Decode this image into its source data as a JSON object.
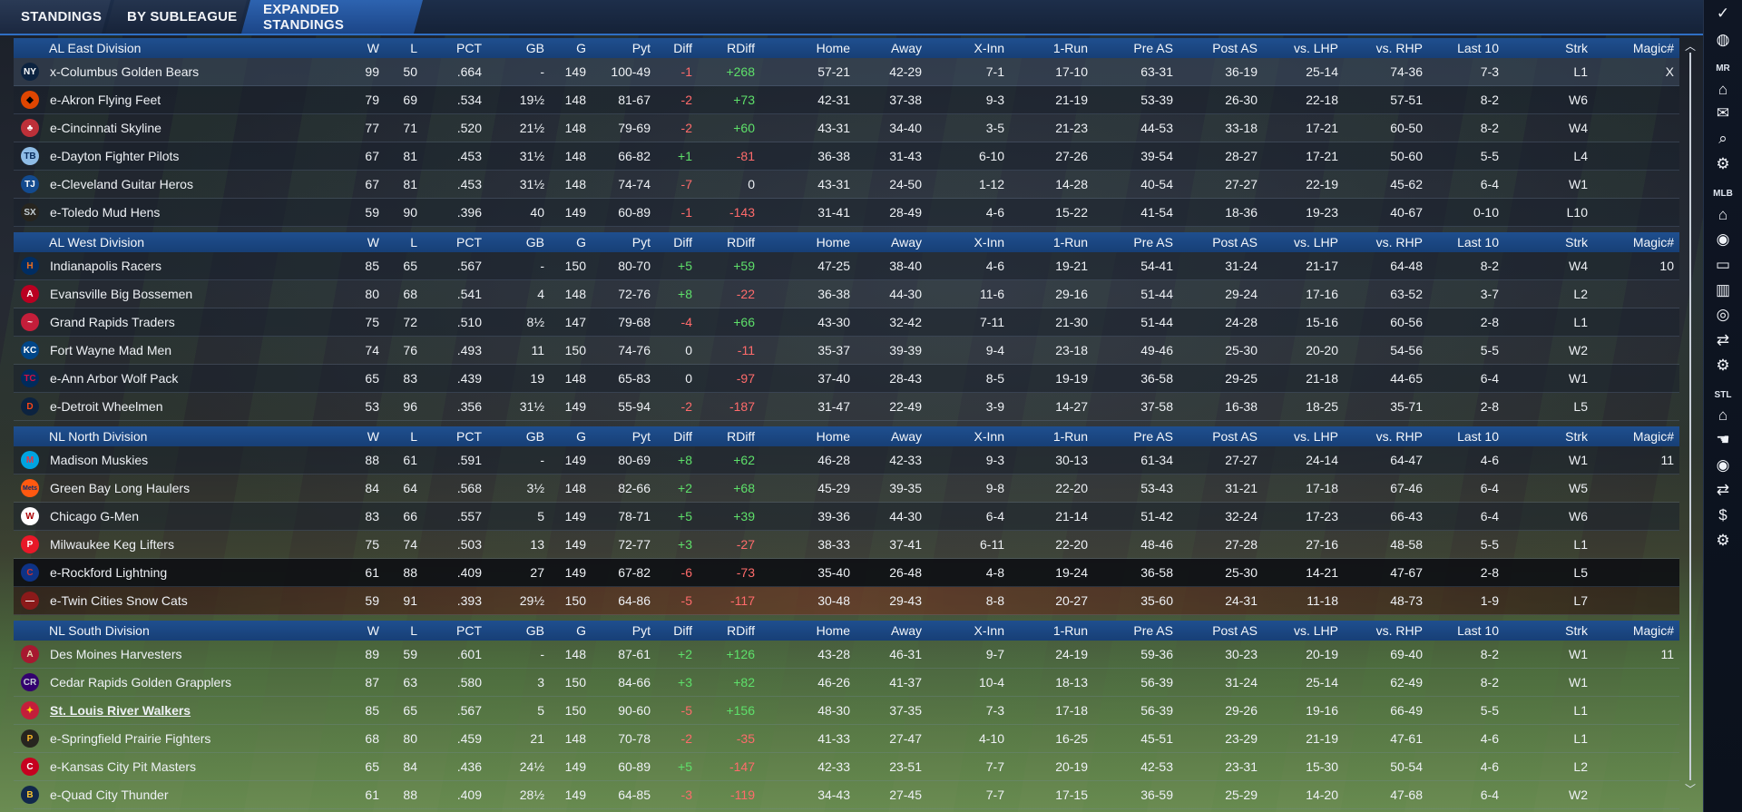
{
  "tabs": [
    {
      "label": "STANDINGS"
    },
    {
      "label": "BY SUBLEAGUE"
    },
    {
      "label": "EXPANDED STANDINGS"
    }
  ],
  "sidebar": {
    "groups": [
      {
        "label": "MR"
      },
      {
        "label": "MLB"
      },
      {
        "label": "STL"
      }
    ],
    "icons": [
      "check-icon",
      "globe-icon",
      "home-icon",
      "mail-icon",
      "search-icon",
      "gear-icon",
      "home-icon",
      "target-icon",
      "card-icon",
      "bar-chart-icon",
      "baseball-icon",
      "transfer-icon",
      "gear-icon",
      "home-icon",
      "hand-icon",
      "target-icon",
      "transfer-icon",
      "dollar-icon",
      "gear-icon"
    ]
  },
  "columns": [
    "W",
    "L",
    "PCT",
    "GB",
    "G",
    "Pyt",
    "Diff",
    "RDiff",
    "Home",
    "Away",
    "X-Inn",
    "1-Run",
    "Pre AS",
    "Post AS",
    "vs. LHP",
    "vs. RHP",
    "Last 10",
    "Strk",
    "Magic#"
  ],
  "divisions": [
    {
      "name": "AL East Division",
      "teams": [
        {
          "logo": "NY",
          "logo_color": "#0c2340",
          "logo_fg": "#ffffff",
          "name": "x-Columbus Golden Bears",
          "w": "99",
          "l": "50",
          "pct": ".664",
          "gb": "-",
          "g": "149",
          "pyt": "100-49",
          "diff": "-1",
          "rdiff": "+268",
          "home": "57-21",
          "away": "42-29",
          "xinn": "7-1",
          "onerun": "17-10",
          "preas": "63-31",
          "postas": "36-19",
          "lhp": "25-14",
          "rhp": "74-36",
          "last10": "7-3",
          "strk": "L1",
          "magic": "X"
        },
        {
          "logo": "◆",
          "logo_color": "#df4601",
          "logo_fg": "#000000",
          "name": "e-Akron  Flying Feet",
          "w": "79",
          "l": "69",
          "pct": ".534",
          "gb": "19½",
          "g": "148",
          "pyt": "81-67",
          "diff": "-2",
          "rdiff": "+73",
          "home": "42-31",
          "away": "37-38",
          "xinn": "9-3",
          "onerun": "21-19",
          "preas": "53-39",
          "postas": "26-30",
          "lhp": "22-18",
          "rhp": "57-51",
          "last10": "8-2",
          "strk": "W6",
          "magic": ""
        },
        {
          "logo": "♣",
          "logo_color": "#bd3039",
          "logo_fg": "#ffffff",
          "name": "e-Cincinnati Skyline",
          "w": "77",
          "l": "71",
          "pct": ".520",
          "gb": "21½",
          "g": "148",
          "pyt": "79-69",
          "diff": "-2",
          "rdiff": "+60",
          "home": "43-31",
          "away": "34-40",
          "xinn": "3-5",
          "onerun": "21-23",
          "preas": "44-53",
          "postas": "33-18",
          "lhp": "17-21",
          "rhp": "60-50",
          "last10": "8-2",
          "strk": "W4",
          "magic": ""
        },
        {
          "logo": "TB",
          "logo_color": "#8fbce6",
          "logo_fg": "#092c5c",
          "name": "e-Dayton Fighter Pilots",
          "w": "67",
          "l": "81",
          "pct": ".453",
          "gb": "31½",
          "g": "148",
          "pyt": "66-82",
          "diff": "+1",
          "rdiff": "-81",
          "home": "36-38",
          "away": "31-43",
          "xinn": "6-10",
          "onerun": "27-26",
          "preas": "39-54",
          "postas": "28-27",
          "lhp": "17-21",
          "rhp": "50-60",
          "last10": "5-5",
          "strk": "L4",
          "magic": ""
        },
        {
          "logo": "TJ",
          "logo_color": "#134a8e",
          "logo_fg": "#ffffff",
          "name": "e-Cleveland Guitar Heros",
          "w": "67",
          "l": "81",
          "pct": ".453",
          "gb": "31½",
          "g": "148",
          "pyt": "74-74",
          "diff": "-7",
          "rdiff": "0",
          "home": "43-31",
          "away": "24-50",
          "xinn": "1-12",
          "onerun": "14-28",
          "preas": "40-54",
          "postas": "27-27",
          "lhp": "22-19",
          "rhp": "45-62",
          "last10": "6-4",
          "strk": "W1",
          "magic": ""
        },
        {
          "logo": "SX",
          "logo_color": "#27251f",
          "logo_fg": "#c4ced4",
          "name": "e-Toledo  Mud Hens",
          "w": "59",
          "l": "90",
          "pct": ".396",
          "gb": "40",
          "g": "149",
          "pyt": "60-89",
          "diff": "-1",
          "rdiff": "-143",
          "home": "31-41",
          "away": "28-49",
          "xinn": "4-6",
          "onerun": "15-22",
          "preas": "41-54",
          "postas": "18-36",
          "lhp": "19-23",
          "rhp": "40-67",
          "last10": "0-10",
          "strk": "L10",
          "magic": ""
        }
      ]
    },
    {
      "name": "AL West Division",
      "teams": [
        {
          "logo": "H",
          "logo_color": "#002d62",
          "logo_fg": "#eb6e1f",
          "name": "Indianapolis Racers",
          "w": "85",
          "l": "65",
          "pct": ".567",
          "gb": "-",
          "g": "150",
          "pyt": "80-70",
          "diff": "+5",
          "rdiff": "+59",
          "home": "47-25",
          "away": "38-40",
          "xinn": "4-6",
          "onerun": "19-21",
          "preas": "54-41",
          "postas": "31-24",
          "lhp": "21-17",
          "rhp": "64-48",
          "last10": "8-2",
          "strk": "W4",
          "magic": "10"
        },
        {
          "logo": "A",
          "logo_color": "#ba0021",
          "logo_fg": "#ffffff",
          "name": "Evansville Big Bossemen",
          "w": "80",
          "l": "68",
          "pct": ".541",
          "gb": "4",
          "g": "148",
          "pyt": "72-76",
          "diff": "+8",
          "rdiff": "-22",
          "home": "36-38",
          "away": "44-30",
          "xinn": "11-6",
          "onerun": "29-16",
          "preas": "51-44",
          "postas": "29-24",
          "lhp": "17-16",
          "rhp": "63-52",
          "last10": "3-7",
          "strk": "L2",
          "magic": ""
        },
        {
          "logo": "~",
          "logo_color": "#c41e3a",
          "logo_fg": "#ffffff",
          "name": "Grand Rapids Traders",
          "w": "75",
          "l": "72",
          "pct": ".510",
          "gb": "8½",
          "g": "147",
          "pyt": "79-68",
          "diff": "-4",
          "rdiff": "+66",
          "home": "43-30",
          "away": "32-42",
          "xinn": "7-11",
          "onerun": "21-30",
          "preas": "51-44",
          "postas": "24-28",
          "lhp": "15-16",
          "rhp": "60-56",
          "last10": "2-8",
          "strk": "L1",
          "magic": ""
        },
        {
          "logo": "KC",
          "logo_color": "#004687",
          "logo_fg": "#ffffff",
          "name": "Fort Wayne Mad Men",
          "w": "74",
          "l": "76",
          "pct": ".493",
          "gb": "11",
          "g": "150",
          "pyt": "74-76",
          "diff": "0",
          "rdiff": "-11",
          "home": "35-37",
          "away": "39-39",
          "xinn": "9-4",
          "onerun": "23-18",
          "preas": "49-46",
          "postas": "25-30",
          "lhp": "20-20",
          "rhp": "54-56",
          "last10": "5-5",
          "strk": "W2",
          "magic": ""
        },
        {
          "logo": "TC",
          "logo_color": "#002b5c",
          "logo_fg": "#d31145",
          "name": "e-Ann Arbor Wolf Pack",
          "w": "65",
          "l": "83",
          "pct": ".439",
          "gb": "19",
          "g": "148",
          "pyt": "65-83",
          "diff": "0",
          "rdiff": "-97",
          "home": "37-40",
          "away": "28-43",
          "xinn": "8-5",
          "onerun": "19-19",
          "preas": "36-58",
          "postas": "29-25",
          "lhp": "21-18",
          "rhp": "44-65",
          "last10": "6-4",
          "strk": "W1",
          "magic": ""
        },
        {
          "logo": "D",
          "logo_color": "#0c2340",
          "logo_fg": "#fa4616",
          "name": "e-Detroit Wheelmen",
          "w": "53",
          "l": "96",
          "pct": ".356",
          "gb": "31½",
          "g": "149",
          "pyt": "55-94",
          "diff": "-2",
          "rdiff": "-187",
          "home": "31-47",
          "away": "22-49",
          "xinn": "3-9",
          "onerun": "14-27",
          "preas": "37-58",
          "postas": "16-38",
          "lhp": "18-25",
          "rhp": "35-71",
          "last10": "2-8",
          "strk": "L5",
          "magic": ""
        }
      ]
    },
    {
      "name": "NL North Division",
      "teams": [
        {
          "logo": "M",
          "logo_color": "#00a3e0",
          "logo_fg": "#ef3340",
          "name": "Madison Muskies",
          "w": "88",
          "l": "61",
          "pct": ".591",
          "gb": "-",
          "g": "149",
          "pyt": "80-69",
          "diff": "+8",
          "rdiff": "+62",
          "home": "46-28",
          "away": "42-33",
          "xinn": "9-3",
          "onerun": "30-13",
          "preas": "61-34",
          "postas": "27-27",
          "lhp": "24-14",
          "rhp": "64-47",
          "last10": "4-6",
          "strk": "W1",
          "magic": "11"
        },
        {
          "logo": "Mets",
          "logo_color": "#ff5910",
          "logo_fg": "#002d72",
          "name": "Green Bay  Long Haulers",
          "w": "84",
          "l": "64",
          "pct": ".568",
          "gb": "3½",
          "g": "148",
          "pyt": "82-66",
          "diff": "+2",
          "rdiff": "+68",
          "home": "45-29",
          "away": "39-35",
          "xinn": "9-8",
          "onerun": "22-20",
          "preas": "53-43",
          "postas": "31-21",
          "lhp": "17-18",
          "rhp": "67-46",
          "last10": "6-4",
          "strk": "W5",
          "magic": ""
        },
        {
          "logo": "W",
          "logo_color": "#ffffff",
          "logo_fg": "#ab0003",
          "name": "Chicago G-Men",
          "w": "83",
          "l": "66",
          "pct": ".557",
          "gb": "5",
          "g": "149",
          "pyt": "78-71",
          "diff": "+5",
          "rdiff": "+39",
          "home": "39-36",
          "away": "44-30",
          "xinn": "6-4",
          "onerun": "21-14",
          "preas": "51-42",
          "postas": "32-24",
          "lhp": "17-23",
          "rhp": "66-43",
          "last10": "6-4",
          "strk": "W6",
          "magic": ""
        },
        {
          "logo": "P",
          "logo_color": "#e81828",
          "logo_fg": "#ffffff",
          "name": "Milwaukee Keg Lifters",
          "w": "75",
          "l": "74",
          "pct": ".503",
          "gb": "13",
          "g": "149",
          "pyt": "72-77",
          "diff": "+3",
          "rdiff": "-27",
          "home": "38-33",
          "away": "37-41",
          "xinn": "6-11",
          "onerun": "22-20",
          "preas": "48-46",
          "postas": "27-28",
          "lhp": "27-16",
          "rhp": "48-58",
          "last10": "5-5",
          "strk": "L1",
          "magic": ""
        },
        {
          "logo": "C",
          "logo_color": "#0e3386",
          "logo_fg": "#cc3433",
          "name": "e-Rockford Lightning",
          "w": "61",
          "l": "88",
          "pct": ".409",
          "gb": "27",
          "g": "149",
          "pyt": "67-82",
          "diff": "-6",
          "rdiff": "-73",
          "home": "35-40",
          "away": "26-48",
          "xinn": "4-8",
          "onerun": "19-24",
          "preas": "36-58",
          "postas": "25-30",
          "lhp": "14-21",
          "rhp": "47-67",
          "last10": "2-8",
          "strk": "L5",
          "magic": ""
        },
        {
          "logo": "—",
          "logo_color": "#8b1a1a",
          "logo_fg": "#ffffff",
          "name": "e-Twin Cities Snow Cats",
          "w": "59",
          "l": "91",
          "pct": ".393",
          "gb": "29½",
          "g": "150",
          "pyt": "64-86",
          "diff": "-5",
          "rdiff": "-117",
          "home": "30-48",
          "away": "29-43",
          "xinn": "8-8",
          "onerun": "20-27",
          "preas": "35-60",
          "postas": "24-31",
          "lhp": "11-18",
          "rhp": "48-73",
          "last10": "1-9",
          "strk": "L7",
          "magic": ""
        }
      ]
    },
    {
      "name": "NL South Division",
      "teams": [
        {
          "logo": "A",
          "logo_color": "#a71930",
          "logo_fg": "#e3d4ad",
          "name": "Des Moines   Harvesters",
          "w": "89",
          "l": "59",
          "pct": ".601",
          "gb": "-",
          "g": "148",
          "pyt": "87-61",
          "diff": "+2",
          "rdiff": "+126",
          "home": "43-28",
          "away": "46-31",
          "xinn": "9-7",
          "onerun": "24-19",
          "preas": "59-36",
          "postas": "30-23",
          "lhp": "20-19",
          "rhp": "69-40",
          "last10": "8-2",
          "strk": "W1",
          "magic": "11"
        },
        {
          "logo": "CR",
          "logo_color": "#33006f",
          "logo_fg": "#c4ced4",
          "name": "Cedar Rapids Golden Grapplers",
          "w": "87",
          "l": "63",
          "pct": ".580",
          "gb": "3",
          "g": "150",
          "pyt": "84-66",
          "diff": "+3",
          "rdiff": "+82",
          "home": "46-26",
          "away": "41-37",
          "xinn": "10-4",
          "onerun": "18-13",
          "preas": "56-39",
          "postas": "31-24",
          "lhp": "25-14",
          "rhp": "62-49",
          "last10": "8-2",
          "strk": "W1",
          "magic": ""
        },
        {
          "logo": "✦",
          "logo_color": "#c41e3a",
          "logo_fg": "#fedb00",
          "name": "St. Louis River Walkers",
          "w": "85",
          "l": "65",
          "pct": ".567",
          "gb": "5",
          "g": "150",
          "pyt": "90-60",
          "diff": "-5",
          "rdiff": "+156",
          "home": "48-30",
          "away": "37-35",
          "xinn": "7-3",
          "onerun": "17-18",
          "preas": "56-39",
          "postas": "29-26",
          "lhp": "19-16",
          "rhp": "66-49",
          "last10": "5-5",
          "strk": "L1",
          "magic": ""
        },
        {
          "logo": "P",
          "logo_color": "#27251f",
          "logo_fg": "#fdb827",
          "name": "e-Springfield Prairie Fighters",
          "w": "68",
          "l": "80",
          "pct": ".459",
          "gb": "21",
          "g": "148",
          "pyt": "70-78",
          "diff": "-2",
          "rdiff": "-35",
          "home": "41-33",
          "away": "27-47",
          "xinn": "4-10",
          "onerun": "16-25",
          "preas": "45-51",
          "postas": "23-29",
          "lhp": "21-19",
          "rhp": "47-61",
          "last10": "4-6",
          "strk": "L1",
          "magic": ""
        },
        {
          "logo": "C",
          "logo_color": "#c6011f",
          "logo_fg": "#ffffff",
          "name": "e-Kansas City Pit Masters",
          "w": "65",
          "l": "84",
          "pct": ".436",
          "gb": "24½",
          "g": "149",
          "pyt": "60-89",
          "diff": "+5",
          "rdiff": "-147",
          "home": "42-33",
          "away": "23-51",
          "xinn": "7-7",
          "onerun": "20-19",
          "preas": "42-53",
          "postas": "23-31",
          "lhp": "15-30",
          "rhp": "50-54",
          "last10": "4-6",
          "strk": "L2",
          "magic": ""
        },
        {
          "logo": "B",
          "logo_color": "#12284b",
          "logo_fg": "#ffc52f",
          "name": "e-Quad City Thunder",
          "w": "61",
          "l": "88",
          "pct": ".409",
          "gb": "28½",
          "g": "149",
          "pyt": "64-85",
          "diff": "-3",
          "rdiff": "-119",
          "home": "34-43",
          "away": "27-45",
          "xinn": "7-7",
          "onerun": "17-15",
          "preas": "36-59",
          "postas": "25-29",
          "lhp": "14-20",
          "rhp": "47-68",
          "last10": "6-4",
          "strk": "W2",
          "magic": ""
        }
      ]
    }
  ]
}
